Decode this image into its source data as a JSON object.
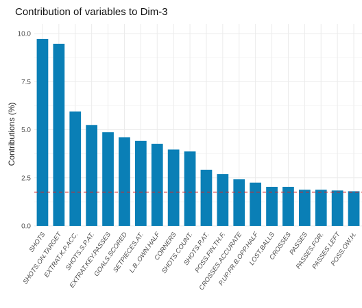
{
  "chart_data": {
    "type": "bar",
    "title": "Contribution of variables to Dim-3",
    "xlabel": "",
    "ylabel": "Contributions (%)",
    "ylim": [
      0,
      10.5
    ],
    "yticks": [
      "0.0",
      "2.5",
      "5.0",
      "7.5",
      "10.0"
    ],
    "ytick_values": [
      0,
      2.5,
      5,
      7.5,
      10
    ],
    "grid": true,
    "bar_color": "#0a7fb6",
    "reference_line": {
      "value": 1.75,
      "color": "#d62728",
      "style": "dashed"
    },
    "categories": [
      "SHOTS",
      "SHOTS.ON.TARGET",
      "EXTRAT.K.P.ACC.",
      "SHOTS.S.P.AT.",
      "EXTRAT.KEY.PASSES",
      "GOALS.SCORED",
      "SETPIECES.AT.",
      "L.B..OWN.HALF",
      "CORNERS",
      "SHOTS.COUNT.",
      "SHOTS.P.AT.",
      "POSS.FIN.TH.F.",
      "CROSSES.ACCURATE",
      "P.UP.FR.B.OPP.HALF",
      "LOST.BALLS",
      "CROSSES",
      "PASSES",
      "PASSES.FOR.",
      "PASSES.LEFT",
      "POSS.OW.H."
    ],
    "values": [
      9.72,
      9.47,
      5.95,
      5.24,
      4.87,
      4.61,
      4.42,
      4.27,
      3.97,
      3.87,
      2.92,
      2.7,
      2.42,
      2.25,
      2.03,
      2.03,
      1.88,
      1.88,
      1.84,
      1.8
    ]
  }
}
